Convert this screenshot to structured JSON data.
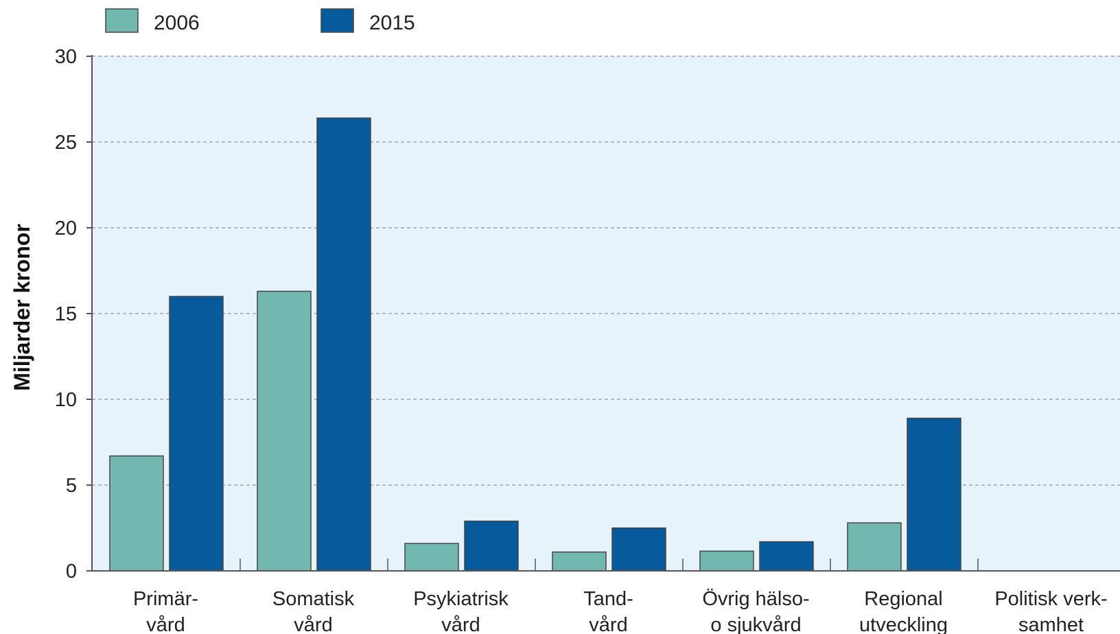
{
  "chart_data": {
    "type": "bar",
    "title": "",
    "xlabel": "",
    "ylabel": "Miljarder kronor",
    "ylim": [
      0,
      30
    ],
    "yticks": [
      0,
      5,
      10,
      15,
      20,
      25,
      30
    ],
    "grid": true,
    "legend_position": "top-left",
    "categories": [
      [
        "Primär-",
        "vård"
      ],
      [
        "Somatisk",
        "vård"
      ],
      [
        "Psykiatrisk",
        "vård"
      ],
      [
        "Tand-",
        "vård"
      ],
      [
        "Övrig hälso-",
        "o sjukvård"
      ],
      [
        "Regional",
        "utveckling"
      ],
      [
        "Politisk verk-",
        "samhet"
      ]
    ],
    "series": [
      {
        "name": "2006",
        "color": "#72b8b0",
        "values": [
          6.7,
          16.3,
          1.6,
          1.1,
          1.15,
          2.8,
          0
        ]
      },
      {
        "name": "2015",
        "color": "#075a9b",
        "values": [
          16.0,
          26.4,
          2.9,
          2.5,
          1.7,
          8.9,
          0
        ]
      }
    ],
    "plot_background": "#e6f3fb"
  }
}
